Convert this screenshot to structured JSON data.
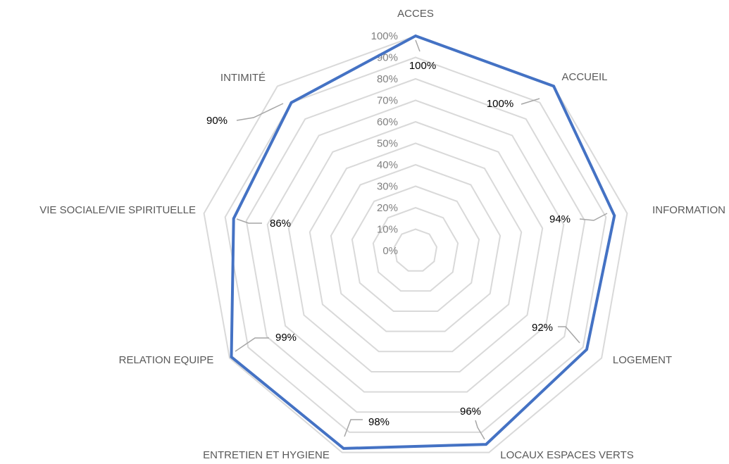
{
  "chart_data": {
    "type": "radar",
    "categories": [
      "ACCES",
      "ACCUEIL",
      "INFORMATION",
      "LOGEMENT",
      "LOCAUX ESPACES VERTS",
      "ENTRETIEN ET HYGIENE",
      "RELATION EQUIPE",
      "VIE SOCIALE/VIE SPIRITUELLE",
      "INTIMITÉ"
    ],
    "series": [
      {
        "values": [
          100,
          100,
          94,
          92,
          96,
          98,
          99,
          86,
          90
        ]
      }
    ],
    "data_labels": [
      "100%",
      "100%",
      "94%",
      "92%",
      "96%",
      "98%",
      "99%",
      "86%",
      "90%"
    ],
    "ticks": [
      "0%",
      "10%",
      "20%",
      "30%",
      "40%",
      "50%",
      "60%",
      "70%",
      "80%",
      "90%",
      "100%"
    ],
    "ylim": [
      0,
      100
    ],
    "grid": true,
    "legend": "none",
    "colors": {
      "series": "#4472C4",
      "grid": "#D9D9D9",
      "leader": "#A6A6A6",
      "highlight_label": "#FF0000",
      "tick_text": "#808080",
      "category_text": "#595959"
    },
    "highlight_index": 7
  }
}
